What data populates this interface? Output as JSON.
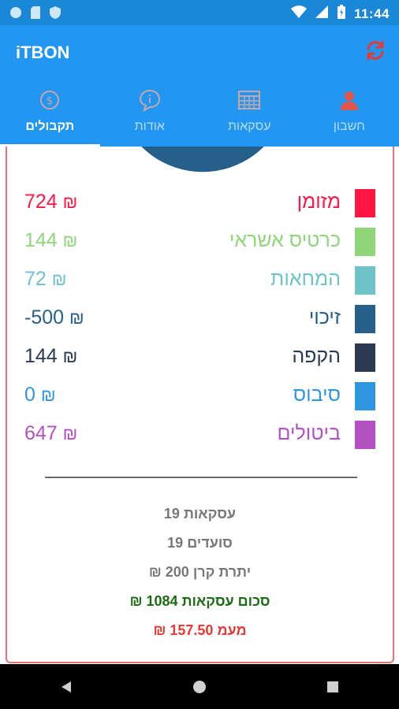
{
  "status_bar": {
    "time": "11:44"
  },
  "app_bar": {
    "title": "iTBON"
  },
  "tabs": [
    {
      "label": "תקבולים",
      "icon": "dollar-circle-icon",
      "active": true
    },
    {
      "label": "אודות",
      "icon": "info-bubble-icon",
      "active": false
    },
    {
      "label": "עסקאות",
      "icon": "calendar-grid-icon",
      "active": false
    },
    {
      "label": "חשבון",
      "icon": "person-icon",
      "active": false
    }
  ],
  "colors": {
    "primary": "#2196f3",
    "card_border": "#e57373",
    "cash": "#ff1744",
    "credit": "#8fd67a",
    "checks": "#6ec3c9",
    "refund": "#265f8a",
    "direct_debit": "#2b3a52",
    "tip": "#3196e0",
    "cancellations": "#b351c2"
  },
  "chart_data": {
    "type": "pie",
    "categories": [
      "מזומן",
      "כרטיס אשראי",
      "המחאות",
      "זיכוי",
      "הקפה",
      "סיבוס",
      "ביטולים"
    ],
    "values": [
      724,
      144,
      72,
      -500,
      144,
      0,
      647
    ]
  },
  "legend": [
    {
      "label": "מזומן",
      "value": "724",
      "currency": "₪",
      "color": "#ff1744"
    },
    {
      "label": "כרטיס אשראי",
      "value": "144",
      "currency": "₪",
      "color": "#8fd67a"
    },
    {
      "label": "המחאות",
      "value": "72",
      "currency": "₪",
      "color": "#6ec3c9"
    },
    {
      "label": "זיכוי",
      "value": "-500",
      "currency": "₪",
      "color": "#265f8a"
    },
    {
      "label": "הקפה",
      "value": "144",
      "currency": "₪",
      "color": "#2b3a52"
    },
    {
      "label": "סיבוס",
      "value": "0",
      "currency": "₪",
      "color": "#3196e0"
    },
    {
      "label": "ביטולים",
      "value": "647",
      "currency": "₪",
      "color": "#b351c2"
    }
  ],
  "summary": {
    "transactions": "עסקאות  19",
    "diners": "סועדים  19",
    "fund_balance": "יתרת קרן  200 ₪",
    "total": "סכום עסקאות 1084 ₪",
    "vat": "מעמ 157.50 ₪"
  }
}
